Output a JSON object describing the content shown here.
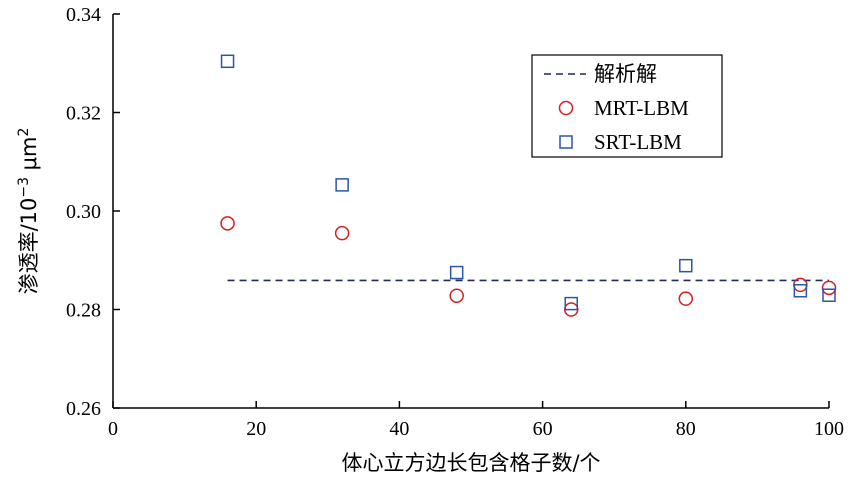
{
  "chart_data": {
    "type": "scatter",
    "xlabel": "体心立方边长包含格子数/个",
    "ylabel_main": "渗透率/10",
    "ylabel_exp": "−3",
    "ylabel_unit": " μm",
    "ylabel_unit_exp": "2",
    "xlim": [
      0,
      100
    ],
    "ylim": [
      0.26,
      0.34
    ],
    "xticks": [
      "0",
      "20",
      "40",
      "60",
      "80",
      "100"
    ],
    "yticks": [
      "0.26",
      "0.28",
      "0.30",
      "0.32",
      "0.34"
    ],
    "legend_position": "top-right",
    "series": [
      {
        "name": "解析解",
        "style": "dashed-line",
        "color": "#1f2a5a",
        "x": [
          16,
          100
        ],
        "y": [
          0.2859,
          0.2859
        ]
      },
      {
        "name": "MRT-LBM",
        "style": "circle",
        "color": "#d42020",
        "x": [
          16,
          32,
          48,
          64,
          80,
          96,
          100
        ],
        "y": [
          0.2975,
          0.2955,
          0.2828,
          0.28,
          0.2822,
          0.285,
          0.2844
        ]
      },
      {
        "name": "SRT-LBM",
        "style": "square",
        "color": "#2a55a8",
        "x": [
          16,
          32,
          48,
          64,
          80,
          96,
          100
        ],
        "y": [
          0.3304,
          0.3053,
          0.2875,
          0.2812,
          0.2889,
          0.2838,
          0.2829
        ]
      }
    ]
  }
}
